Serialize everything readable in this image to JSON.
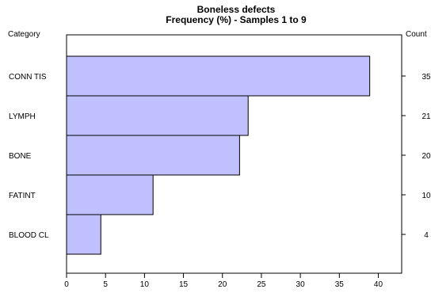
{
  "chart_data": {
    "type": "bar",
    "orientation": "horizontal",
    "title": "Boneless defects",
    "subtitle": "Frequency (%)  -  Samples 1 to 9",
    "left_axis_label": "Category",
    "right_axis_label": "Count",
    "categories": [
      "CONN TIS",
      "LYMPH",
      "BONE",
      "FATINT",
      "BLOOD CL"
    ],
    "values": [
      38.9,
      23.3,
      22.2,
      11.1,
      4.4
    ],
    "counts": [
      35,
      21,
      20,
      10,
      4
    ],
    "xlim": [
      0,
      43
    ],
    "xticks": [
      0,
      5,
      10,
      15,
      20,
      25,
      30,
      35,
      40
    ],
    "grid": false,
    "bar_color": "#c0c0ff",
    "bar_edge_color": "#000000"
  }
}
